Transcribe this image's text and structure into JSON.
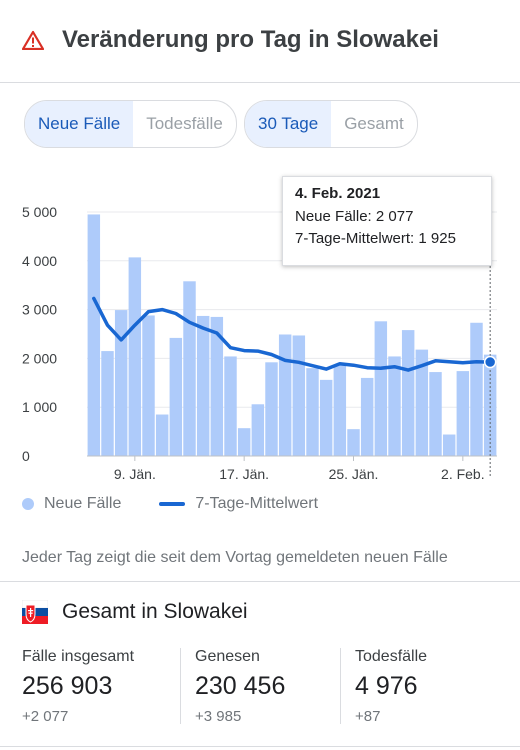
{
  "header": {
    "title": "Veränderung pro Tag in Slowakei",
    "icon": "warning-icon",
    "icon_color": "#d93025"
  },
  "toggles": {
    "metric": [
      {
        "label": "Neue Fälle",
        "active": true
      },
      {
        "label": "Todesfälle",
        "active": false
      }
    ],
    "range": [
      {
        "label": "30 Tage",
        "active": true
      },
      {
        "label": "Gesamt",
        "active": false
      }
    ]
  },
  "tooltip": {
    "date": "4. Feb. 2021",
    "new_cases": "Neue Fälle: 2 077",
    "avg": "7-Tage-Mittelwert: 1 925"
  },
  "legend": {
    "bars": "Neue Fälle",
    "line": "7-Tage-Mittelwert"
  },
  "note": "Jeder Tag zeigt die seit dem Vortag gemeldeten neuen Fälle",
  "totals": {
    "title": "Gesamt in Slowakei",
    "stats": [
      {
        "label": "Fälle insgesamt",
        "value": "256 903",
        "delta": "+2 077"
      },
      {
        "label": "Genesen",
        "value": "230 456",
        "delta": "+3 985"
      },
      {
        "label": "Todesfälle",
        "value": "4 976",
        "delta": "+87"
      }
    ]
  },
  "colors": {
    "bar": "#aecbfa",
    "line": "#1967d2",
    "accent": "#1a5ab8",
    "grid": "#e8eaed"
  },
  "chart_data": {
    "type": "bar",
    "x": [
      "2021-01-06",
      "2021-01-07",
      "2021-01-08",
      "2021-01-09",
      "2021-01-10",
      "2021-01-11",
      "2021-01-12",
      "2021-01-13",
      "2021-01-14",
      "2021-01-15",
      "2021-01-16",
      "2021-01-17",
      "2021-01-18",
      "2021-01-19",
      "2021-01-20",
      "2021-01-21",
      "2021-01-22",
      "2021-01-23",
      "2021-01-24",
      "2021-01-25",
      "2021-01-26",
      "2021-01-27",
      "2021-01-28",
      "2021-01-29",
      "2021-01-30",
      "2021-01-31",
      "2021-02-01",
      "2021-02-02",
      "2021-02-03",
      "2021-02-04"
    ],
    "x_ticks": [
      {
        "index": 3,
        "label": "9. Jän."
      },
      {
        "index": 11,
        "label": "17. Jän."
      },
      {
        "index": 19,
        "label": "25. Jän."
      },
      {
        "index": 27,
        "label": "2. Feb."
      }
    ],
    "y_ticks": [
      {
        "value": 0,
        "label": "0"
      },
      {
        "value": 1000,
        "label": "1 000"
      },
      {
        "value": 2000,
        "label": "2 000"
      },
      {
        "value": 3000,
        "label": "3 000"
      },
      {
        "value": 4000,
        "label": "4 000"
      },
      {
        "value": 5000,
        "label": "5 000"
      }
    ],
    "ylim": [
      0,
      5000
    ],
    "grid": true,
    "legend_position": "bottom-left",
    "series": [
      {
        "name": "Neue Fälle",
        "type": "bar",
        "values": [
          4950,
          2150,
          2990,
          4070,
          2880,
          850,
          2420,
          3580,
          2870,
          2850,
          2040,
          570,
          1060,
          1920,
          2490,
          2470,
          1800,
          1560,
          1860,
          550,
          1600,
          2760,
          2040,
          2580,
          2180,
          1720,
          440,
          1740,
          2730,
          2077
        ]
      },
      {
        "name": "7-Tage-Mittelwert",
        "type": "line",
        "values": [
          3230,
          2680,
          2380,
          2680,
          2960,
          3000,
          2920,
          2740,
          2620,
          2520,
          2220,
          2160,
          2150,
          2080,
          1960,
          1920,
          1850,
          1780,
          1890,
          1860,
          1810,
          1800,
          1830,
          1760,
          1850,
          1950,
          1930,
          1910,
          1930,
          1925
        ]
      }
    ],
    "highlight_index": 29
  }
}
